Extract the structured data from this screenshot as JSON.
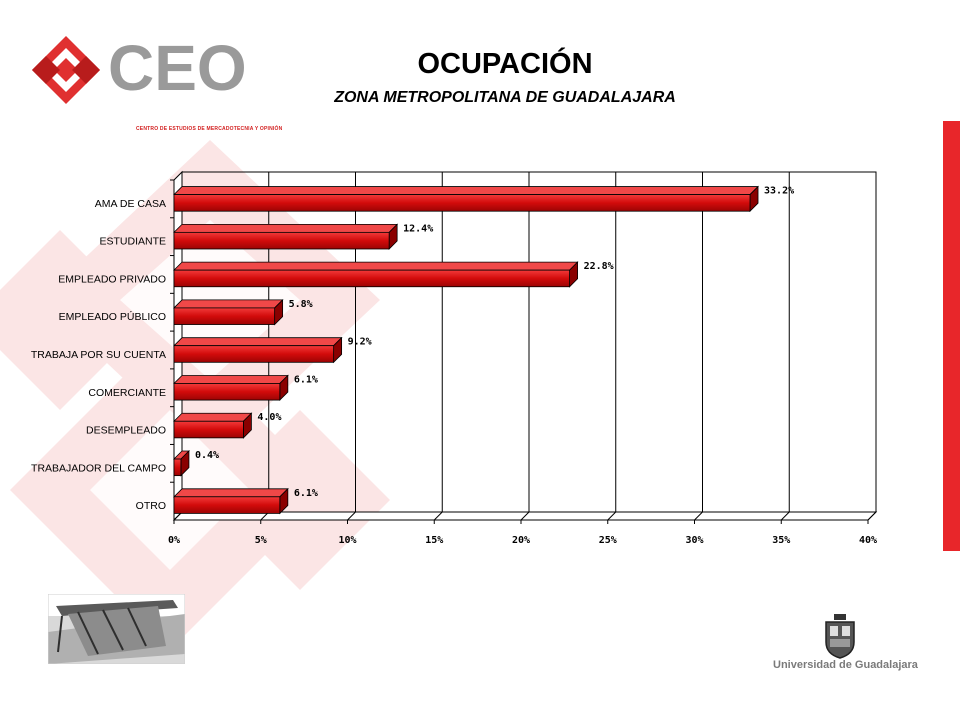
{
  "header": {
    "title": "OCUPACIÓN",
    "subtitle": "ZONA METROPOLITANA DE GUADALAJARA"
  },
  "logo": {
    "text": "CEO",
    "tagline": "CENTRO DE ESTUDIOS DE MERCADOTECNIA Y OPINIÓN"
  },
  "footer": {
    "university": "Universidad de Guadalajara"
  },
  "colors": {
    "bar_front": "#d20b0b",
    "bar_top": "#f04848",
    "bar_side": "#8a0000",
    "accent_stripe": "#e8262a",
    "background_diamonds": "#fbe6e6"
  },
  "chart_data": {
    "type": "bar",
    "orientation": "horizontal",
    "categories": [
      "AMA DE CASA",
      "ESTUDIANTE",
      "EMPLEADO PRIVADO",
      "EMPLEADO PÚBLICO",
      "TRABAJA POR SU CUENTA",
      "COMERCIANTE",
      "DESEMPLEADO",
      "TRABAJADOR DEL CAMPO",
      "OTRO"
    ],
    "values": [
      33.2,
      12.4,
      22.8,
      5.8,
      9.2,
      6.1,
      4.0,
      0.4,
      6.1
    ],
    "value_labels": [
      "33.2%",
      "12.4%",
      "22.8%",
      "5.8%",
      "9.2%",
      "6.1%",
      "4.0%",
      "0.4%",
      "6.1%"
    ],
    "xticks": [
      "0%",
      "5%",
      "10%",
      "15%",
      "20%",
      "25%",
      "30%",
      "35%",
      "40%"
    ],
    "xlim": [
      0,
      40
    ],
    "grid": true,
    "legend": "none"
  }
}
